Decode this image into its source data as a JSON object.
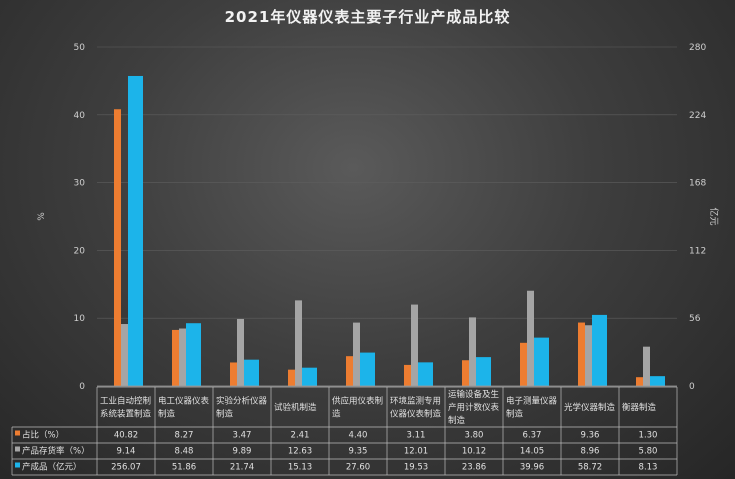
{
  "chart_data": {
    "type": "bar",
    "title": "2021年仪器仪表主要子行业产成品比较",
    "ylabel": "%",
    "y2label": "亿元",
    "ylim": [
      0,
      50
    ],
    "y2lim": [
      0,
      280
    ],
    "yticks": [
      "0",
      "10",
      "20",
      "30",
      "40",
      "50"
    ],
    "y2ticks": [
      "0",
      "56",
      "112",
      "168",
      "224",
      "280"
    ],
    "categories": [
      [
        "工业自动控制",
        "系统装置制造"
      ],
      [
        "电工仪器仪表",
        "制造"
      ],
      [
        "实验分析仪器",
        "制造"
      ],
      [
        "试验机制造"
      ],
      [
        "供应用仪表制",
        "造"
      ],
      [
        "环境监测专用",
        "仪器仪表制造"
      ],
      [
        "运输设备及生",
        "产用计数仪表",
        "制造"
      ],
      [
        "电子测量仪器",
        "制造"
      ],
      [
        "光学仪器制造"
      ],
      [
        "衡器制造"
      ]
    ],
    "series": [
      {
        "name": "占比（%）",
        "color": "#ed7d31",
        "axis": "left",
        "values": [
          40.82,
          8.27,
          3.47,
          2.41,
          4.4,
          3.11,
          3.8,
          6.37,
          9.36,
          1.3
        ],
        "labels": [
          "40.82",
          "8.27",
          "3.47",
          "2.41",
          "4.40",
          "3.11",
          "3.80",
          "6.37",
          "9.36",
          "1.30"
        ]
      },
      {
        "name": "产品存货率（%）",
        "color": "#a5a5a5",
        "axis": "left",
        "values": [
          9.14,
          8.48,
          9.89,
          12.63,
          9.35,
          12.01,
          10.12,
          14.05,
          8.96,
          5.8
        ],
        "labels": [
          "9.14",
          "8.48",
          "9.89",
          "12.63",
          "9.35",
          "12.01",
          "10.12",
          "14.05",
          "8.96",
          "5.80"
        ]
      },
      {
        "name": "产成品（亿元）",
        "color": "#1cb4ea",
        "axis": "right",
        "values": [
          256.07,
          51.86,
          21.74,
          15.13,
          27.6,
          19.53,
          23.86,
          39.96,
          58.72,
          8.13
        ],
        "labels": [
          "256.07",
          "51.86",
          "21.74",
          "15.13",
          "27.60",
          "19.53",
          "23.86",
          "39.96",
          "58.72",
          "8.13"
        ]
      }
    ],
    "grid": true,
    "legend": "table-below"
  }
}
